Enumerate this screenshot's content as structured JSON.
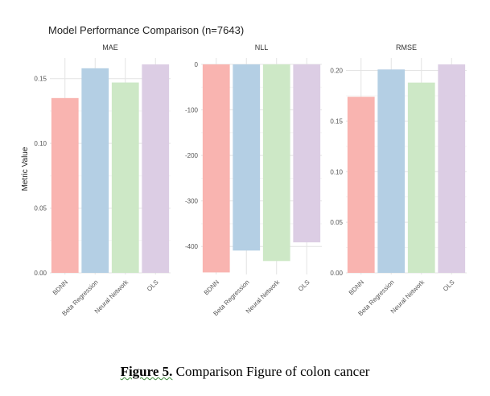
{
  "chart_data": {
    "type": "bar",
    "title": "Model Performance Comparison (n=7643)",
    "ylabel": "Metric Value",
    "categories": [
      "BDNN",
      "Beta Regression",
      "Neural Network",
      "OLS"
    ],
    "colors": [
      "#f9b4b0",
      "#b4cfe4",
      "#cde8c6",
      "#dccde4"
    ],
    "grid": true,
    "facets": [
      {
        "name": "MAE",
        "values": [
          0.135,
          0.158,
          0.147,
          0.161
        ],
        "ylim": [
          0,
          0.161
        ],
        "ticks": [
          0.0,
          0.05,
          0.1,
          0.15
        ],
        "tick_labels": [
          "0.00",
          "0.05",
          "0.10",
          "0.15"
        ]
      },
      {
        "name": "NLL",
        "values": [
          -457,
          -409,
          -432,
          -391
        ],
        "ylim": [
          -458,
          0
        ],
        "ticks": [
          0,
          -100,
          -200,
          -300,
          -400
        ],
        "tick_labels": [
          "0",
          "-100",
          "-200",
          "-300",
          "-400"
        ]
      },
      {
        "name": "RMSE",
        "values": [
          0.174,
          0.201,
          0.188,
          0.206
        ],
        "ylim": [
          0,
          0.206
        ],
        "ticks": [
          0.0,
          0.05,
          0.1,
          0.15,
          0.2
        ],
        "tick_labels": [
          "0.00",
          "0.05",
          "0.10",
          "0.15",
          "0.20"
        ]
      }
    ]
  },
  "caption": {
    "lead": "Figure  5.",
    "text": " Comparison Figure of colon cancer"
  }
}
